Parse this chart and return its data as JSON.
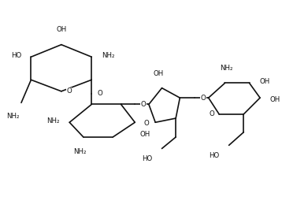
{
  "background": "#ffffff",
  "line_color": "#111111",
  "text_color": "#111111",
  "lw": 1.2,
  "fs": 6.2,
  "xlim": [
    0.3,
    3.7
  ],
  "ylim": [
    0.2,
    2.2
  ]
}
